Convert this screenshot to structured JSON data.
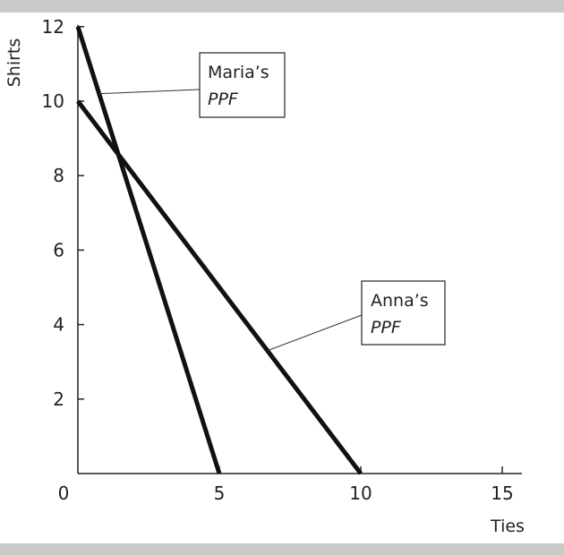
{
  "chart_data": {
    "type": "line",
    "title": "",
    "xlabel": "Ties",
    "ylabel": "Shirts",
    "xlim": [
      0,
      15
    ],
    "ylim": [
      0,
      12
    ],
    "x_ticks": [
      {
        "value": 0,
        "label": "0"
      },
      {
        "value": 5,
        "label": "5"
      },
      {
        "value": 10,
        "label": "10"
      },
      {
        "value": 15,
        "label": "15"
      }
    ],
    "y_ticks": [
      {
        "value": 2,
        "label": "2"
      },
      {
        "value": 4,
        "label": "4"
      },
      {
        "value": 6,
        "label": "6"
      },
      {
        "value": 8,
        "label": "8"
      },
      {
        "value": 10,
        "label": "10"
      },
      {
        "value": 12,
        "label": "12"
      }
    ],
    "grid": false,
    "legend": "none",
    "series": [
      {
        "name": "Maria's PPF",
        "points": [
          {
            "x": 0,
            "y": 12
          },
          {
            "x": 5,
            "y": 0
          }
        ],
        "color": "#111111"
      },
      {
        "name": "Anna's PPF",
        "points": [
          {
            "x": 0,
            "y": 10
          },
          {
            "x": 10,
            "y": 0
          }
        ],
        "color": "#111111"
      }
    ],
    "annotations": [
      {
        "series": "Maria's PPF",
        "line1": "Maria’s",
        "line2": "PPF",
        "pointer_at": {
          "x": 0.75,
          "y": 10.2
        }
      },
      {
        "series": "Anna's PPF",
        "line1": "Anna’s",
        "line2": "PPF",
        "pointer_at": {
          "x": 6.7,
          "y": 3.3
        }
      }
    ]
  }
}
